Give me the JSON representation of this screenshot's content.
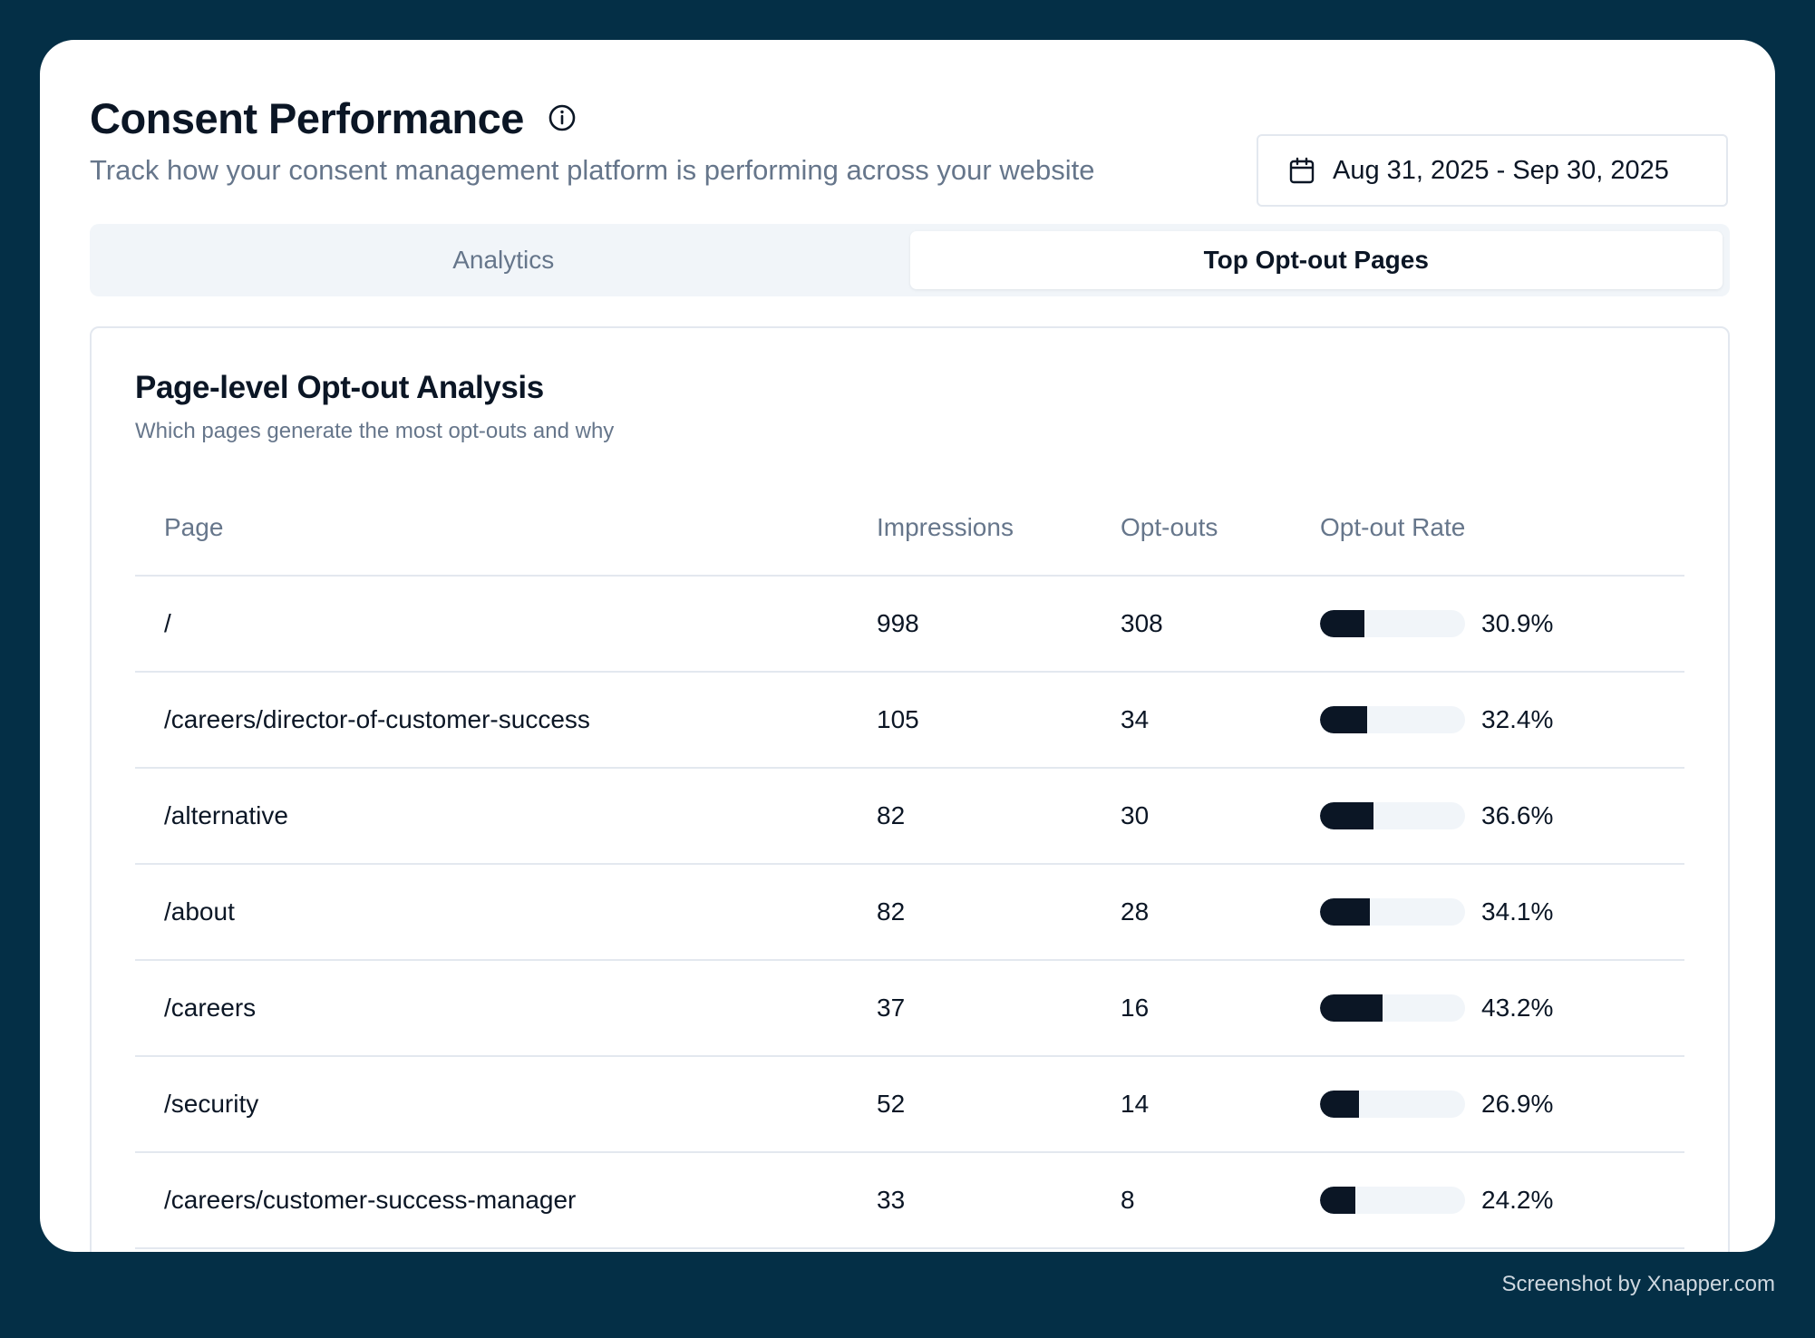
{
  "header": {
    "title": "Consent Performance",
    "subtitle": "Track how your consent management platform is performing across your website",
    "date_range": "Aug 31, 2025 - Sep 30, 2025"
  },
  "tabs": [
    {
      "label": "Analytics",
      "active": false
    },
    {
      "label": "Top Opt-out Pages",
      "active": true
    }
  ],
  "card": {
    "title": "Page-level Opt-out Analysis",
    "subtitle": "Which pages generate the most opt-outs and why"
  },
  "table": {
    "columns": [
      "Page",
      "Impressions",
      "Opt-outs",
      "Opt-out Rate"
    ],
    "rows": [
      {
        "page": "/",
        "impressions": "998",
        "optouts": "308",
        "rate": "30.9%",
        "rate_value": 30.9
      },
      {
        "page": "/careers/director-of-customer-success",
        "impressions": "105",
        "optouts": "34",
        "rate": "32.4%",
        "rate_value": 32.4
      },
      {
        "page": "/alternative",
        "impressions": "82",
        "optouts": "30",
        "rate": "36.6%",
        "rate_value": 36.6
      },
      {
        "page": "/about",
        "impressions": "82",
        "optouts": "28",
        "rate": "34.1%",
        "rate_value": 34.1
      },
      {
        "page": "/careers",
        "impressions": "37",
        "optouts": "16",
        "rate": "43.2%",
        "rate_value": 43.2
      },
      {
        "page": "/security",
        "impressions": "52",
        "optouts": "14",
        "rate": "26.9%",
        "rate_value": 26.9
      },
      {
        "page": "/careers/customer-success-manager",
        "impressions": "33",
        "optouts": "8",
        "rate": "24.2%",
        "rate_value": 24.2
      }
    ]
  },
  "watermark": "Screenshot by Xnapper.com",
  "icons": {
    "info": "info-circle-icon",
    "calendar": "calendar-icon"
  },
  "colors": {
    "background": "#042f46",
    "bar_fill": "#0b1625",
    "bar_track": "#f1f5f9",
    "muted_text": "#66768b"
  }
}
